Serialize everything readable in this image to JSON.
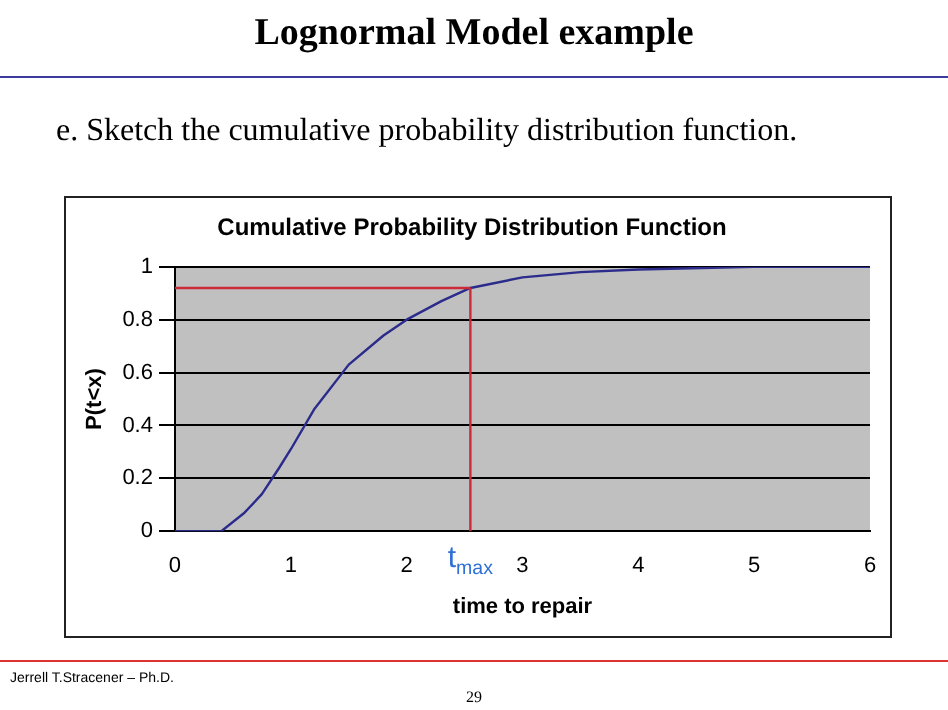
{
  "chart_data": {
    "type": "line",
    "title": "Cumulative Probability Distribution Function",
    "xlabel": "time to repair",
    "ylabel": "P(t<x)",
    "annotations": [
      "Lognormal Model example",
      "e. Sketch the cumulative probability distribution function.",
      "Jerrell T.Stracener – Ph.D.",
      "29"
    ],
    "series": [
      {
        "color": "#2b2b8c",
        "x": [
          0,
          0.4,
          0.6,
          0.75,
          0.9,
          1,
          1.2,
          1.5,
          1.8,
          2,
          2.3,
          2.55,
          3,
          3.5,
          4,
          5,
          6
        ],
        "values": [
          0,
          0,
          0.07,
          0.14,
          0.24,
          0.31,
          0.46,
          0.63,
          0.74,
          0.8,
          0.87,
          0.92,
          0.96,
          0.98,
          0.99,
          1,
          1
        ]
      }
    ],
    "xlim": [
      0,
      6
    ],
    "xticks": [
      0,
      1,
      2,
      3,
      4,
      5,
      6
    ],
    "ylim": [
      0,
      1
    ],
    "yticks": [
      0,
      0.2,
      0.4,
      0.6,
      0.8,
      1
    ],
    "ref_lines": [
      {
        "axis": "x",
        "value": 2.55,
        "label": "t$_{max}$",
        "color": "#cc2a36"
      },
      {
        "axis": "y",
        "value": 0.92,
        "color": "#cc2a36"
      }
    ],
    "grid": "y",
    "legend": false,
    "marker": "none",
    "line_style": "solid"
  }
}
